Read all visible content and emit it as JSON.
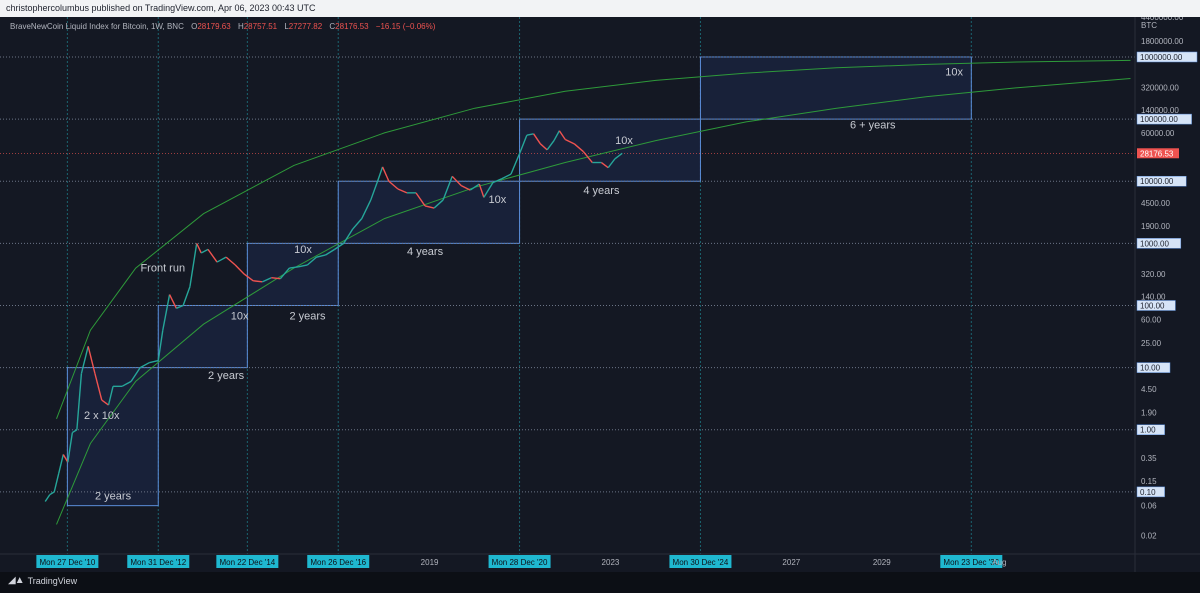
{
  "header": {
    "published": "christophercolumbus published on TradingView.com, Apr 06, 2023 00:43 UTC"
  },
  "symbol": {
    "title": "BraveNewCoin Liquid Index for Bitcoin, 1W, BNC",
    "open_label": "O",
    "open": "28179.63",
    "high_label": "H",
    "high": "28757.51",
    "low_label": "L",
    "low": "27277.82",
    "close_label": "C",
    "close": "28176.53",
    "change": "−16.15 (−0.06%)"
  },
  "footer": {
    "brand": "TradingView"
  },
  "colors": {
    "grid": "#2a2e39",
    "box_fill": "#1c2a4d",
    "box_stroke": "#5b8dd9",
    "curve": "#2e9a3a",
    "up": "#26a69a",
    "down": "#ef5350",
    "axis_label": "#b2b5be",
    "date_label_bg": "#1fb8d0",
    "price_label_bg": "#d6e4f7"
  },
  "chart_data": {
    "type": "line",
    "scale": "log",
    "currency": "BTC",
    "ylim": [
      0.01,
      4400000
    ],
    "xlim": [
      2009.5,
      2034.6
    ],
    "y_tick_labels": [
      "4400000.00",
      "1800000.00",
      "320000.00",
      "140000.00",
      "60000.00",
      "4500.00",
      "1900.00",
      "320.00",
      "140.00",
      "60.00",
      "25.00",
      "4.50",
      "1.90",
      "0.35",
      "0.15",
      "0.06",
      "0.02"
    ],
    "y_tick_values": [
      4400000,
      1800000,
      320000,
      140000,
      60000,
      4500,
      1900,
      320,
      140,
      60,
      25,
      4.5,
      1.9,
      0.35,
      0.15,
      0.06,
      0.02
    ],
    "hlines": [
      {
        "value": 1000000,
        "label": "1000000.00"
      },
      {
        "value": 100000,
        "label": "100000.00"
      },
      {
        "value": 10000,
        "label": "10000.00"
      },
      {
        "value": 1000,
        "label": "1000.00"
      },
      {
        "value": 100,
        "label": "100.00"
      },
      {
        "value": 10,
        "label": "10.00"
      },
      {
        "value": 1,
        "label": "1.00"
      },
      {
        "value": 0.1,
        "label": "0.10"
      }
    ],
    "last_price": {
      "value": 28176.53,
      "label": "28176.53"
    },
    "x_date_markers": [
      {
        "x": 2010.99,
        "label": "Mon 27 Dec '10"
      },
      {
        "x": 2013.0,
        "label": "Mon 31 Dec '12"
      },
      {
        "x": 2014.97,
        "label": "Mon 22 Dec '14"
      },
      {
        "x": 2016.98,
        "label": "Mon 26 Dec '16"
      },
      {
        "x": 2020.99,
        "label": "Mon 28 Dec '20"
      },
      {
        "x": 2024.99,
        "label": "Mon 30 Dec '24"
      },
      {
        "x": 2030.98,
        "label": "Mon 23 Dec '30"
      }
    ],
    "x_tick_labels": [
      {
        "x": 2019.0,
        "label": "2019"
      },
      {
        "x": 2023.0,
        "label": "2023"
      },
      {
        "x": 2027.0,
        "label": "2027"
      },
      {
        "x": 2029.0,
        "label": "2029"
      },
      {
        "x": 2031.6,
        "label": "Aug"
      }
    ],
    "boxes": [
      {
        "x0": 2010.99,
        "x1": 2013.0,
        "y0": 0.06,
        "y1": 10
      },
      {
        "x0": 2013.0,
        "x1": 2014.97,
        "y0": 10,
        "y1": 100
      },
      {
        "x0": 2014.97,
        "x1": 2016.98,
        "y0": 100,
        "y1": 1000
      },
      {
        "x0": 2016.98,
        "x1": 2020.99,
        "y0": 1000,
        "y1": 10000
      },
      {
        "x0": 2020.99,
        "x1": 2024.99,
        "y0": 10000,
        "y1": 100000
      },
      {
        "x0": 2024.99,
        "x1": 2030.98,
        "y0": 100000,
        "y1": 1000000
      }
    ],
    "annotations": [
      {
        "text": "2 years",
        "x": 2012.0,
        "y": 0.075
      },
      {
        "text": "2 x 10x",
        "x": 2011.75,
        "y": 1.5
      },
      {
        "text": "2 years",
        "x": 2014.5,
        "y": 6.5
      },
      {
        "text": "Front run",
        "x": 2013.1,
        "y": 350
      },
      {
        "text": "10x",
        "x": 2014.8,
        "y": 60
      },
      {
        "text": "2 years",
        "x": 2016.3,
        "y": 60
      },
      {
        "text": "10x",
        "x": 2016.2,
        "y": 700
      },
      {
        "text": "4 years",
        "x": 2018.9,
        "y": 650
      },
      {
        "text": "10x",
        "x": 2020.5,
        "y": 4500
      },
      {
        "text": "4 years",
        "x": 2022.8,
        "y": 6200
      },
      {
        "text": "10x",
        "x": 2023.3,
        "y": 40000
      },
      {
        "text": "6 + years",
        "x": 2028.8,
        "y": 70000
      },
      {
        "text": "10x",
        "x": 2030.6,
        "y": 500000
      }
    ],
    "price_series": {
      "name": "",
      "x": [
        2010.5,
        2010.6,
        2010.7,
        2010.8,
        2010.9,
        2011.0,
        2011.1,
        2011.2,
        2011.3,
        2011.45,
        2011.6,
        2011.75,
        2011.9,
        2012.0,
        2012.2,
        2012.4,
        2012.6,
        2012.8,
        2013.0,
        2013.1,
        2013.25,
        2013.4,
        2013.55,
        2013.7,
        2013.85,
        2013.95,
        2014.1,
        2014.3,
        2014.5,
        2014.7,
        2014.9,
        2015.1,
        2015.3,
        2015.5,
        2015.7,
        2015.9,
        2016.1,
        2016.3,
        2016.5,
        2016.7,
        2016.9,
        2017.1,
        2017.3,
        2017.5,
        2017.7,
        2017.85,
        2017.96,
        2018.1,
        2018.3,
        2018.5,
        2018.7,
        2018.9,
        2019.1,
        2019.3,
        2019.5,
        2019.7,
        2019.9,
        2020.1,
        2020.2,
        2020.4,
        2020.6,
        2020.8,
        2021.0,
        2021.15,
        2021.3,
        2021.45,
        2021.6,
        2021.75,
        2021.87,
        2022.0,
        2022.2,
        2022.4,
        2022.6,
        2022.8,
        2022.95,
        2023.1,
        2023.26
      ],
      "y": [
        0.07,
        0.09,
        0.1,
        0.2,
        0.4,
        0.3,
        0.9,
        1.0,
        8,
        22,
        8,
        3,
        2.5,
        5,
        5,
        6,
        10,
        12,
        13,
        40,
        150,
        90,
        100,
        200,
        1000,
        700,
        800,
        500,
        600,
        450,
        320,
        250,
        240,
        280,
        270,
        400,
        420,
        450,
        600,
        650,
        800,
        1000,
        1700,
        2500,
        5000,
        10000,
        17000,
        10000,
        7500,
        6500,
        6500,
        4000,
        3700,
        5000,
        12000,
        8500,
        7200,
        9000,
        5500,
        9500,
        11000,
        13000,
        29000,
        55000,
        58000,
        40000,
        32000,
        45000,
        65000,
        47000,
        40000,
        30000,
        20000,
        20000,
        16500,
        23000,
        28176
      ]
    },
    "curves": [
      {
        "name": "",
        "points": [
          [
            2010.75,
            1.5
          ],
          [
            2011.5,
            40
          ],
          [
            2012.5,
            400
          ],
          [
            2014.0,
            3000
          ],
          [
            2016.0,
            18000
          ],
          [
            2018.0,
            60000
          ],
          [
            2020.0,
            150000
          ],
          [
            2022.0,
            280000
          ],
          [
            2024.0,
            420000
          ],
          [
            2026.0,
            550000
          ],
          [
            2028.0,
            670000
          ],
          [
            2030.0,
            760000
          ],
          [
            2032.0,
            830000
          ],
          [
            2034.5,
            880000
          ]
        ]
      },
      {
        "name": "",
        "points": [
          [
            2010.75,
            0.03
          ],
          [
            2011.5,
            0.6
          ],
          [
            2012.5,
            6
          ],
          [
            2014.0,
            50
          ],
          [
            2016.0,
            400
          ],
          [
            2018.0,
            2500
          ],
          [
            2020.0,
            8000
          ],
          [
            2022.0,
            20000
          ],
          [
            2024.0,
            45000
          ],
          [
            2026.0,
            90000
          ],
          [
            2028.0,
            150000
          ],
          [
            2030.0,
            230000
          ],
          [
            2032.0,
            320000
          ],
          [
            2034.5,
            450000
          ]
        ]
      }
    ]
  }
}
